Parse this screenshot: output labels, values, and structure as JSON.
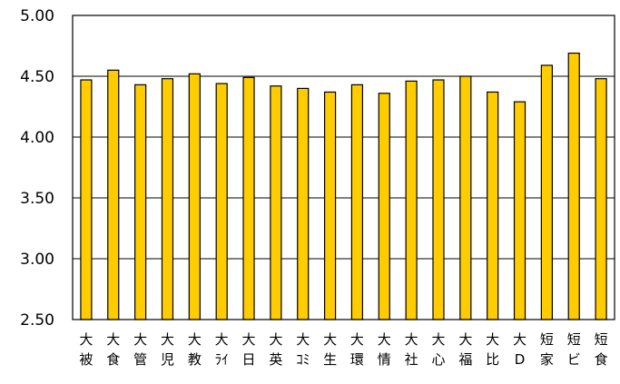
{
  "chart_data": {
    "type": "bar",
    "title": "",
    "xlabel": "",
    "ylabel": "",
    "ylim": [
      2.5,
      5.0
    ],
    "yticks": [
      "5.00",
      "4.50",
      "4.00",
      "3.50",
      "3.00",
      "2.50"
    ],
    "ytick_values": [
      5.0,
      4.5,
      4.0,
      3.5,
      3.0,
      2.5
    ],
    "grid": true,
    "legend": "none",
    "bar_color": "#FFCC00",
    "bar_edge_color": "#000000",
    "categories": [
      [
        "大",
        "被"
      ],
      [
        "大",
        "食"
      ],
      [
        "大",
        "管"
      ],
      [
        "大",
        "児"
      ],
      [
        "大",
        "教"
      ],
      [
        "大",
        "ﾗｲ"
      ],
      [
        "大",
        "日"
      ],
      [
        "大",
        "英"
      ],
      [
        "大",
        "ｺﾐ"
      ],
      [
        "大",
        "生"
      ],
      [
        "大",
        "環"
      ],
      [
        "大",
        "情"
      ],
      [
        "大",
        "社"
      ],
      [
        "大",
        "心"
      ],
      [
        "大",
        "福"
      ],
      [
        "大",
        "比"
      ],
      [
        "大",
        "D"
      ],
      [
        "短",
        "家"
      ],
      [
        "短",
        "ビ"
      ],
      [
        "短",
        "食"
      ]
    ],
    "values": [
      4.47,
      4.55,
      4.43,
      4.48,
      4.52,
      4.44,
      4.49,
      4.42,
      4.4,
      4.37,
      4.43,
      4.36,
      4.46,
      4.47,
      4.5,
      4.37,
      4.29,
      4.59,
      4.69,
      4.48
    ]
  }
}
